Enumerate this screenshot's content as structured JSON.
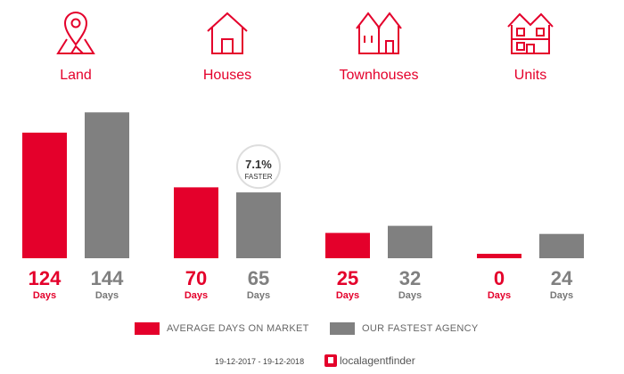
{
  "categories": [
    {
      "label": "Land",
      "icon": "land-pin-icon"
    },
    {
      "label": "Houses",
      "icon": "house-icon"
    },
    {
      "label": "Townhouses",
      "icon": "townhouses-icon"
    },
    {
      "label": "Units",
      "icon": "units-icon"
    }
  ],
  "colors": {
    "average": "#e4002b",
    "fastest": "#808080",
    "unit_label": "#777777"
  },
  "chart_data": {
    "type": "bar",
    "categories": [
      "Land",
      "Houses",
      "Townhouses",
      "Units"
    ],
    "series": [
      {
        "name": "AVERAGE DAYS ON MARKET",
        "values": [
          124,
          70,
          25,
          0
        ]
      },
      {
        "name": "OUR FASTEST AGENCY",
        "values": [
          144,
          65,
          32,
          24
        ]
      }
    ],
    "value_unit": "Days",
    "ylim": [
      0,
      160
    ],
    "annotation": {
      "category": "Houses",
      "value": "7.1%",
      "text": "FASTER"
    },
    "legend_position": "bottom"
  },
  "legend": {
    "average_label": "AVERAGE DAYS ON MARKET",
    "fastest_label": "OUR FASTEST AGENCY"
  },
  "footer": {
    "date_range": "19-12-2017 - 19-12-2018",
    "brand": "localagentfinder"
  }
}
